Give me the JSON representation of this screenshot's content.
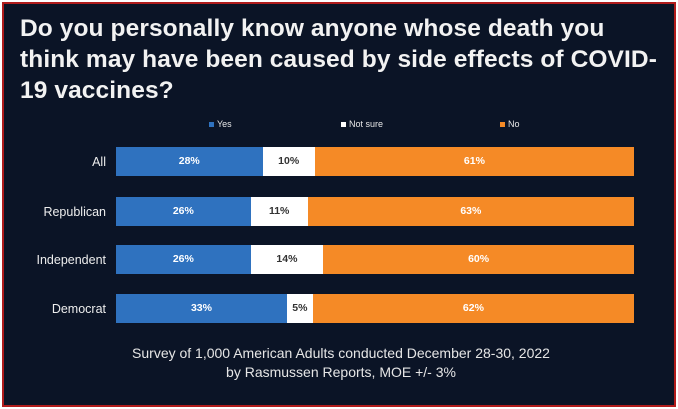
{
  "title": "Do you personally know anyone whose death you think may have been caused by side effects of COVID-19 vaccines?",
  "footer": {
    "line1": "Survey of 1,000 American Adults conducted December 28-30, 2022",
    "line2": "by Rasmussen Reports, MOE +/- 3%"
  },
  "colors": {
    "background": "#0b1426",
    "border": "#b01c1c",
    "yes": "#2f72bf",
    "not_sure": "#ffffff",
    "no": "#f58a26"
  },
  "chart_data": {
    "type": "bar",
    "orientation": "horizontal",
    "stacked": true,
    "title": "Do you personally know anyone whose death you think may have been caused by side effects of COVID-19 vaccines?",
    "legend_position": "top",
    "categories": [
      "All",
      "Republican",
      "Independent",
      "Democrat"
    ],
    "series": [
      {
        "name": "Yes",
        "values": [
          28,
          26,
          26,
          33
        ],
        "labels": [
          "28%",
          "26%",
          "26%",
          "33%"
        ]
      },
      {
        "name": "Not sure",
        "values": [
          10,
          11,
          14,
          5
        ],
        "labels": [
          "10%",
          "11%",
          "14%",
          "5%"
        ]
      },
      {
        "name": "No",
        "values": [
          61,
          63,
          60,
          62
        ],
        "labels": [
          "61%",
          "63%",
          "60%",
          "62%"
        ]
      }
    ],
    "grid": false
  }
}
